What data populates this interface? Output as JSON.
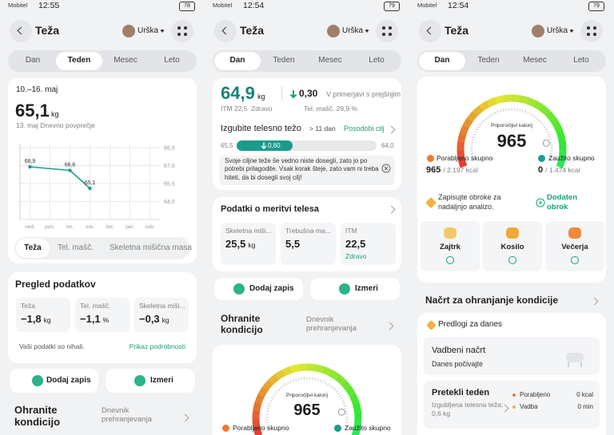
{
  "screens": [
    {
      "status": {
        "carrier": "Mobitel",
        "time": "12:55",
        "battery": "78"
      },
      "header": {
        "title": "Teža",
        "user": "Urška"
      },
      "tabs": [
        "Dan",
        "Teden",
        "Mesec",
        "Leto"
      ],
      "summary": {
        "period": "10.–16. maj",
        "value": "65,1",
        "unit": "kg",
        "note": "13. maj Dnevno povprečje"
      },
      "chart": {
        "type": "line",
        "categories": [
          "ned.",
          "pon.",
          "tor.",
          "sre.",
          "čet.",
          "pet.",
          "sob."
        ],
        "values": [
          66.9,
          null,
          66.6,
          65.1,
          null,
          null,
          null
        ],
        "value_labels": [
          "66,9",
          null,
          "66,6",
          "65,1",
          null,
          null,
          null
        ],
        "ylim": [
          62.5,
          68.5
        ],
        "yticks": [
          {
            "value": 64,
            "label": "64,0"
          },
          {
            "value": 65.5,
            "label": "65,5"
          },
          {
            "value": 67,
            "label": "67,0"
          },
          {
            "value": 68.5,
            "label": "68,5"
          }
        ],
        "color": "#1a9c8c",
        "grid": true
      },
      "metric_tabs": [
        "Teža",
        "Tel. mašč.",
        "Skeletna mišična masa"
      ],
      "overview": {
        "title": "Pregled podatkov",
        "items": [
          {
            "label": "Teža",
            "value": "−1,8",
            "unit": "kg"
          },
          {
            "label": "Tel. mašč.",
            "value": "−1,1",
            "unit": "%"
          },
          {
            "label": "Skeletna miši...",
            "value": "−0,3",
            "unit": "kg"
          }
        ],
        "note": "Vaši podatki so nihali.",
        "link": "Prikaz podrobnosti"
      },
      "actions": [
        "Dodaj zapis",
        "Izmeri"
      ],
      "fitness": {
        "title": "Ohranite kondicijo",
        "link": "Dnevnik prehranjevanja"
      }
    },
    {
      "status": {
        "carrier": "Mobitel",
        "time": "12:54",
        "battery": "79"
      },
      "header": {
        "title": "Teža",
        "user": "Urška"
      },
      "tabs": [
        "Dan",
        "Teden",
        "Mesec",
        "Leto"
      ],
      "summary": {
        "value": "64,9",
        "unit": "kg",
        "change": "0,30",
        "change_note": "V primerjavi s prejšnjim",
        "bmi": "ITM 22,5",
        "bmi_status": "Zdravo",
        "fat": "Tel. mašč. 29,9 %"
      },
      "goal": {
        "title": "Izgubite telesno težo",
        "days": "> 11 dan",
        "link": "Posodobi cilj",
        "start": "65,5",
        "progress": "0,60",
        "target": "64,0",
        "message": "Svoje ciljne teže še vedno niste dosegli, zato jo po potrebi prilagodite. Vsak korak šteje, zato vam ni treba hiteti, da bi dosegli svoj cilj!"
      },
      "measurements": {
        "title": "Podatki o meritvi telesa",
        "items": [
          {
            "label": "Skeletna miši...",
            "value": "25,5",
            "unit": "kg"
          },
          {
            "label": "Trebušna ma...",
            "value": "5,5"
          },
          {
            "label": "ITM",
            "value": "22,5",
            "status": "Zdravo"
          }
        ]
      },
      "actions": [
        "Dodaj zapis",
        "Izmeri"
      ],
      "fitness": {
        "title": "Ohranite kondicijo",
        "link": "Dnevnik prehranjevanja"
      },
      "calories": {
        "label": "Priporočljivi kalorij",
        "value": "965",
        "burned": "Porabljeno skupno",
        "eaten": "Zaužito skupno"
      }
    },
    {
      "status": {
        "carrier": "Mobitel",
        "time": "12:54",
        "battery": "79"
      },
      "header": {
        "title": "Teža",
        "user": "Urška"
      },
      "tabs": [
        "Dan",
        "Teden",
        "Mesec",
        "Leto"
      ],
      "calories": {
        "label": "Priporočljivi kalorij",
        "value": "965",
        "burned": "Porabljeno skupno",
        "eaten": "Zaužito skupno",
        "burned_value": "965",
        "burned_total": "/ 2.197 kcal",
        "eaten_value": "0",
        "eaten_total": "/ 1.474 kcal"
      },
      "meals": {
        "prompt": "Zapisujte obroke za nadaljnjo analizo.",
        "add": "Dodaten obrok",
        "items": [
          "Zajtrk",
          "Kosilo",
          "Večerja"
        ]
      },
      "plan": {
        "title": "Načrt za ohranjanje kondicije",
        "suggestions": "Predlogi za danes",
        "workout_title": "Vadbeni načrt",
        "workout_note": "Danes počivajte",
        "week_title": "Pretekli teden",
        "week_note": "Izgubljena telesna teža: 0,6 kg",
        "stats": [
          {
            "label": "Porabljeno",
            "value": "0 kcal"
          },
          {
            "label": "Vadba",
            "value": "0 min"
          }
        ]
      }
    }
  ]
}
